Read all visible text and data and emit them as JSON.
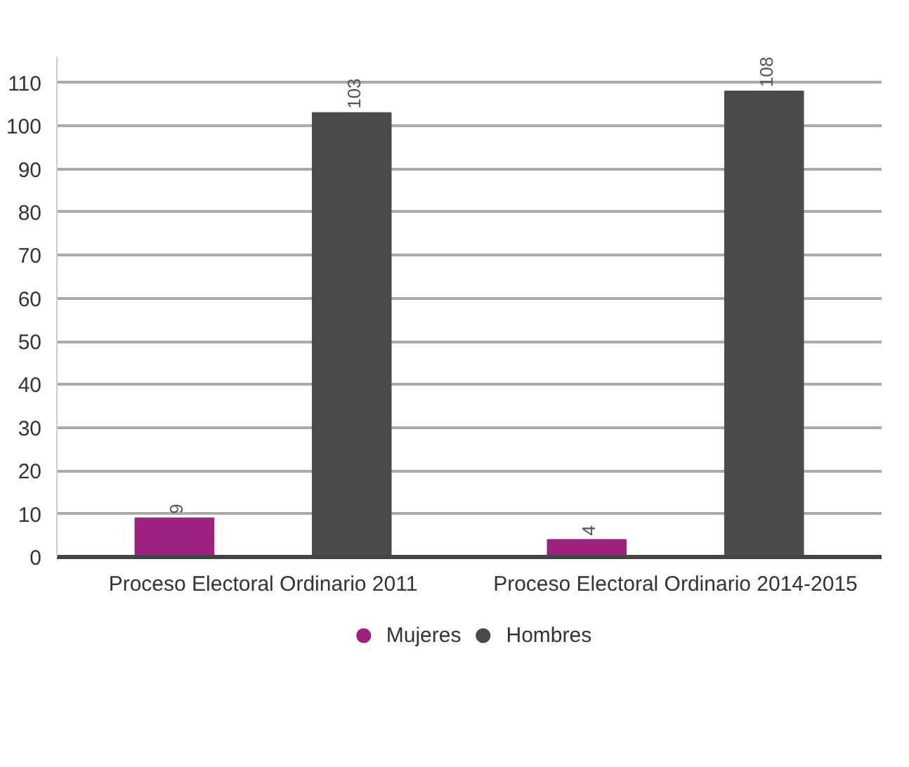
{
  "chart_data": {
    "type": "bar",
    "categories": [
      "Proceso Electoral Ordinario 2011",
      "Proceso Electoral Ordinario 2014-2015"
    ],
    "series": [
      {
        "name": "Mujeres",
        "color": "#9e2180",
        "values": [
          9,
          4
        ]
      },
      {
        "name": "Hombres",
        "color": "#4a4a4a",
        "values": [
          103,
          108
        ]
      }
    ],
    "ylim": [
      0,
      116
    ],
    "yticks": [
      0,
      10,
      20,
      30,
      40,
      50,
      60,
      70,
      80,
      90,
      100,
      110
    ],
    "grid": "y",
    "legend": "bottom",
    "data_labels": true
  }
}
